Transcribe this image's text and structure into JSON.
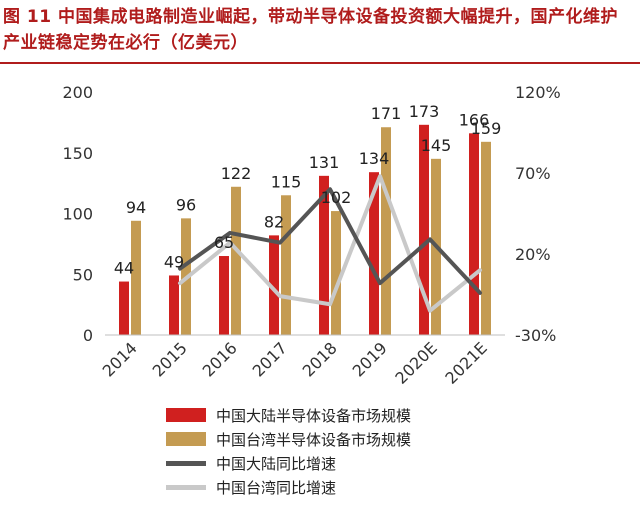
{
  "figure_title": "图 11 中国集成电路制造业崛起，带动半导体设备投资额大幅提升，国产化维护产业链稳定势在必行（亿美元）",
  "colors": {
    "title": "#b01c1c",
    "mainland_bar": "#d0201f",
    "taiwan_bar": "#c49b52",
    "mainland_line": "#555555",
    "taiwan_line": "#c9c9c9"
  },
  "chart_data": {
    "type": "bar",
    "categories": [
      "2014",
      "2015",
      "2016",
      "2017",
      "2018",
      "2019",
      "2020E",
      "2021E"
    ],
    "series": [
      {
        "name": "中国大陆半导体设备市场规模",
        "type": "bar",
        "axis": "left",
        "values": [
          44,
          49,
          65,
          82,
          131,
          134,
          173,
          166
        ],
        "labels": [
          "44",
          "49",
          "65",
          "82",
          "131",
          "134",
          "173",
          "166"
        ]
      },
      {
        "name": "中国台湾半导体设备市场规模",
        "type": "bar",
        "axis": "left",
        "values": [
          94,
          96,
          122,
          115,
          102,
          171,
          145,
          159
        ],
        "labels": [
          "94",
          "96",
          "122",
          "115",
          "102",
          "171",
          "145",
          "159"
        ]
      },
      {
        "name": "中国大陆同比增速",
        "type": "line",
        "axis": "right",
        "values": [
          null,
          11,
          33,
          27,
          60,
          2,
          29,
          -4
        ]
      },
      {
        "name": "中国台湾同比增速",
        "type": "line",
        "axis": "right",
        "values": [
          null,
          2,
          27,
          -6,
          -11,
          68,
          -15,
          10
        ]
      }
    ],
    "left_axis": {
      "ylim": [
        0,
        200
      ],
      "ticks": [
        "0",
        "50",
        "100",
        "150",
        "200"
      ]
    },
    "right_axis": {
      "ylim": [
        -30,
        120
      ],
      "ticks": [
        "-30%",
        "20%",
        "70%",
        "120%"
      ]
    },
    "grid": false,
    "legend_position": "bottom"
  }
}
